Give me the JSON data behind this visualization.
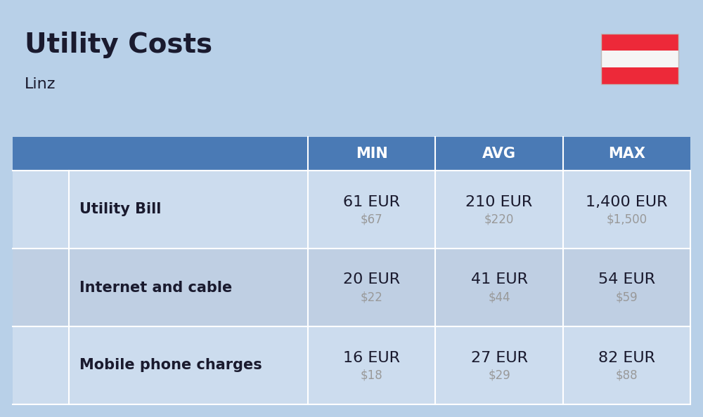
{
  "title": "Utility Costs",
  "subtitle": "Linz",
  "background_color": "#b8d0e8",
  "header_color": "#4a7ab5",
  "header_text_color": "#ffffff",
  "row_color_1": "#ccdcee",
  "row_color_2": "#bfcfe3",
  "col_headers": [
    "MIN",
    "AVG",
    "MAX"
  ],
  "rows": [
    {
      "label": "Utility Bill",
      "min_eur": "61 EUR",
      "min_usd": "$67",
      "avg_eur": "210 EUR",
      "avg_usd": "$220",
      "max_eur": "1,400 EUR",
      "max_usd": "$1,500"
    },
    {
      "label": "Internet and cable",
      "min_eur": "20 EUR",
      "min_usd": "$22",
      "avg_eur": "41 EUR",
      "avg_usd": "$44",
      "max_eur": "54 EUR",
      "max_usd": "$59"
    },
    {
      "label": "Mobile phone charges",
      "min_eur": "16 EUR",
      "min_usd": "$18",
      "avg_eur": "27 EUR",
      "avg_usd": "$29",
      "max_eur": "82 EUR",
      "max_usd": "$88"
    }
  ],
  "flag_stripe_colors": [
    "#ed2939",
    "#f5f5f5",
    "#ed2939"
  ],
  "eur_fontsize": 16,
  "usd_fontsize": 12,
  "label_fontsize": 15,
  "header_fontsize": 15,
  "title_fontsize": 28,
  "subtitle_fontsize": 16,
  "usd_color": "#999999",
  "text_color": "#1a1a2e"
}
